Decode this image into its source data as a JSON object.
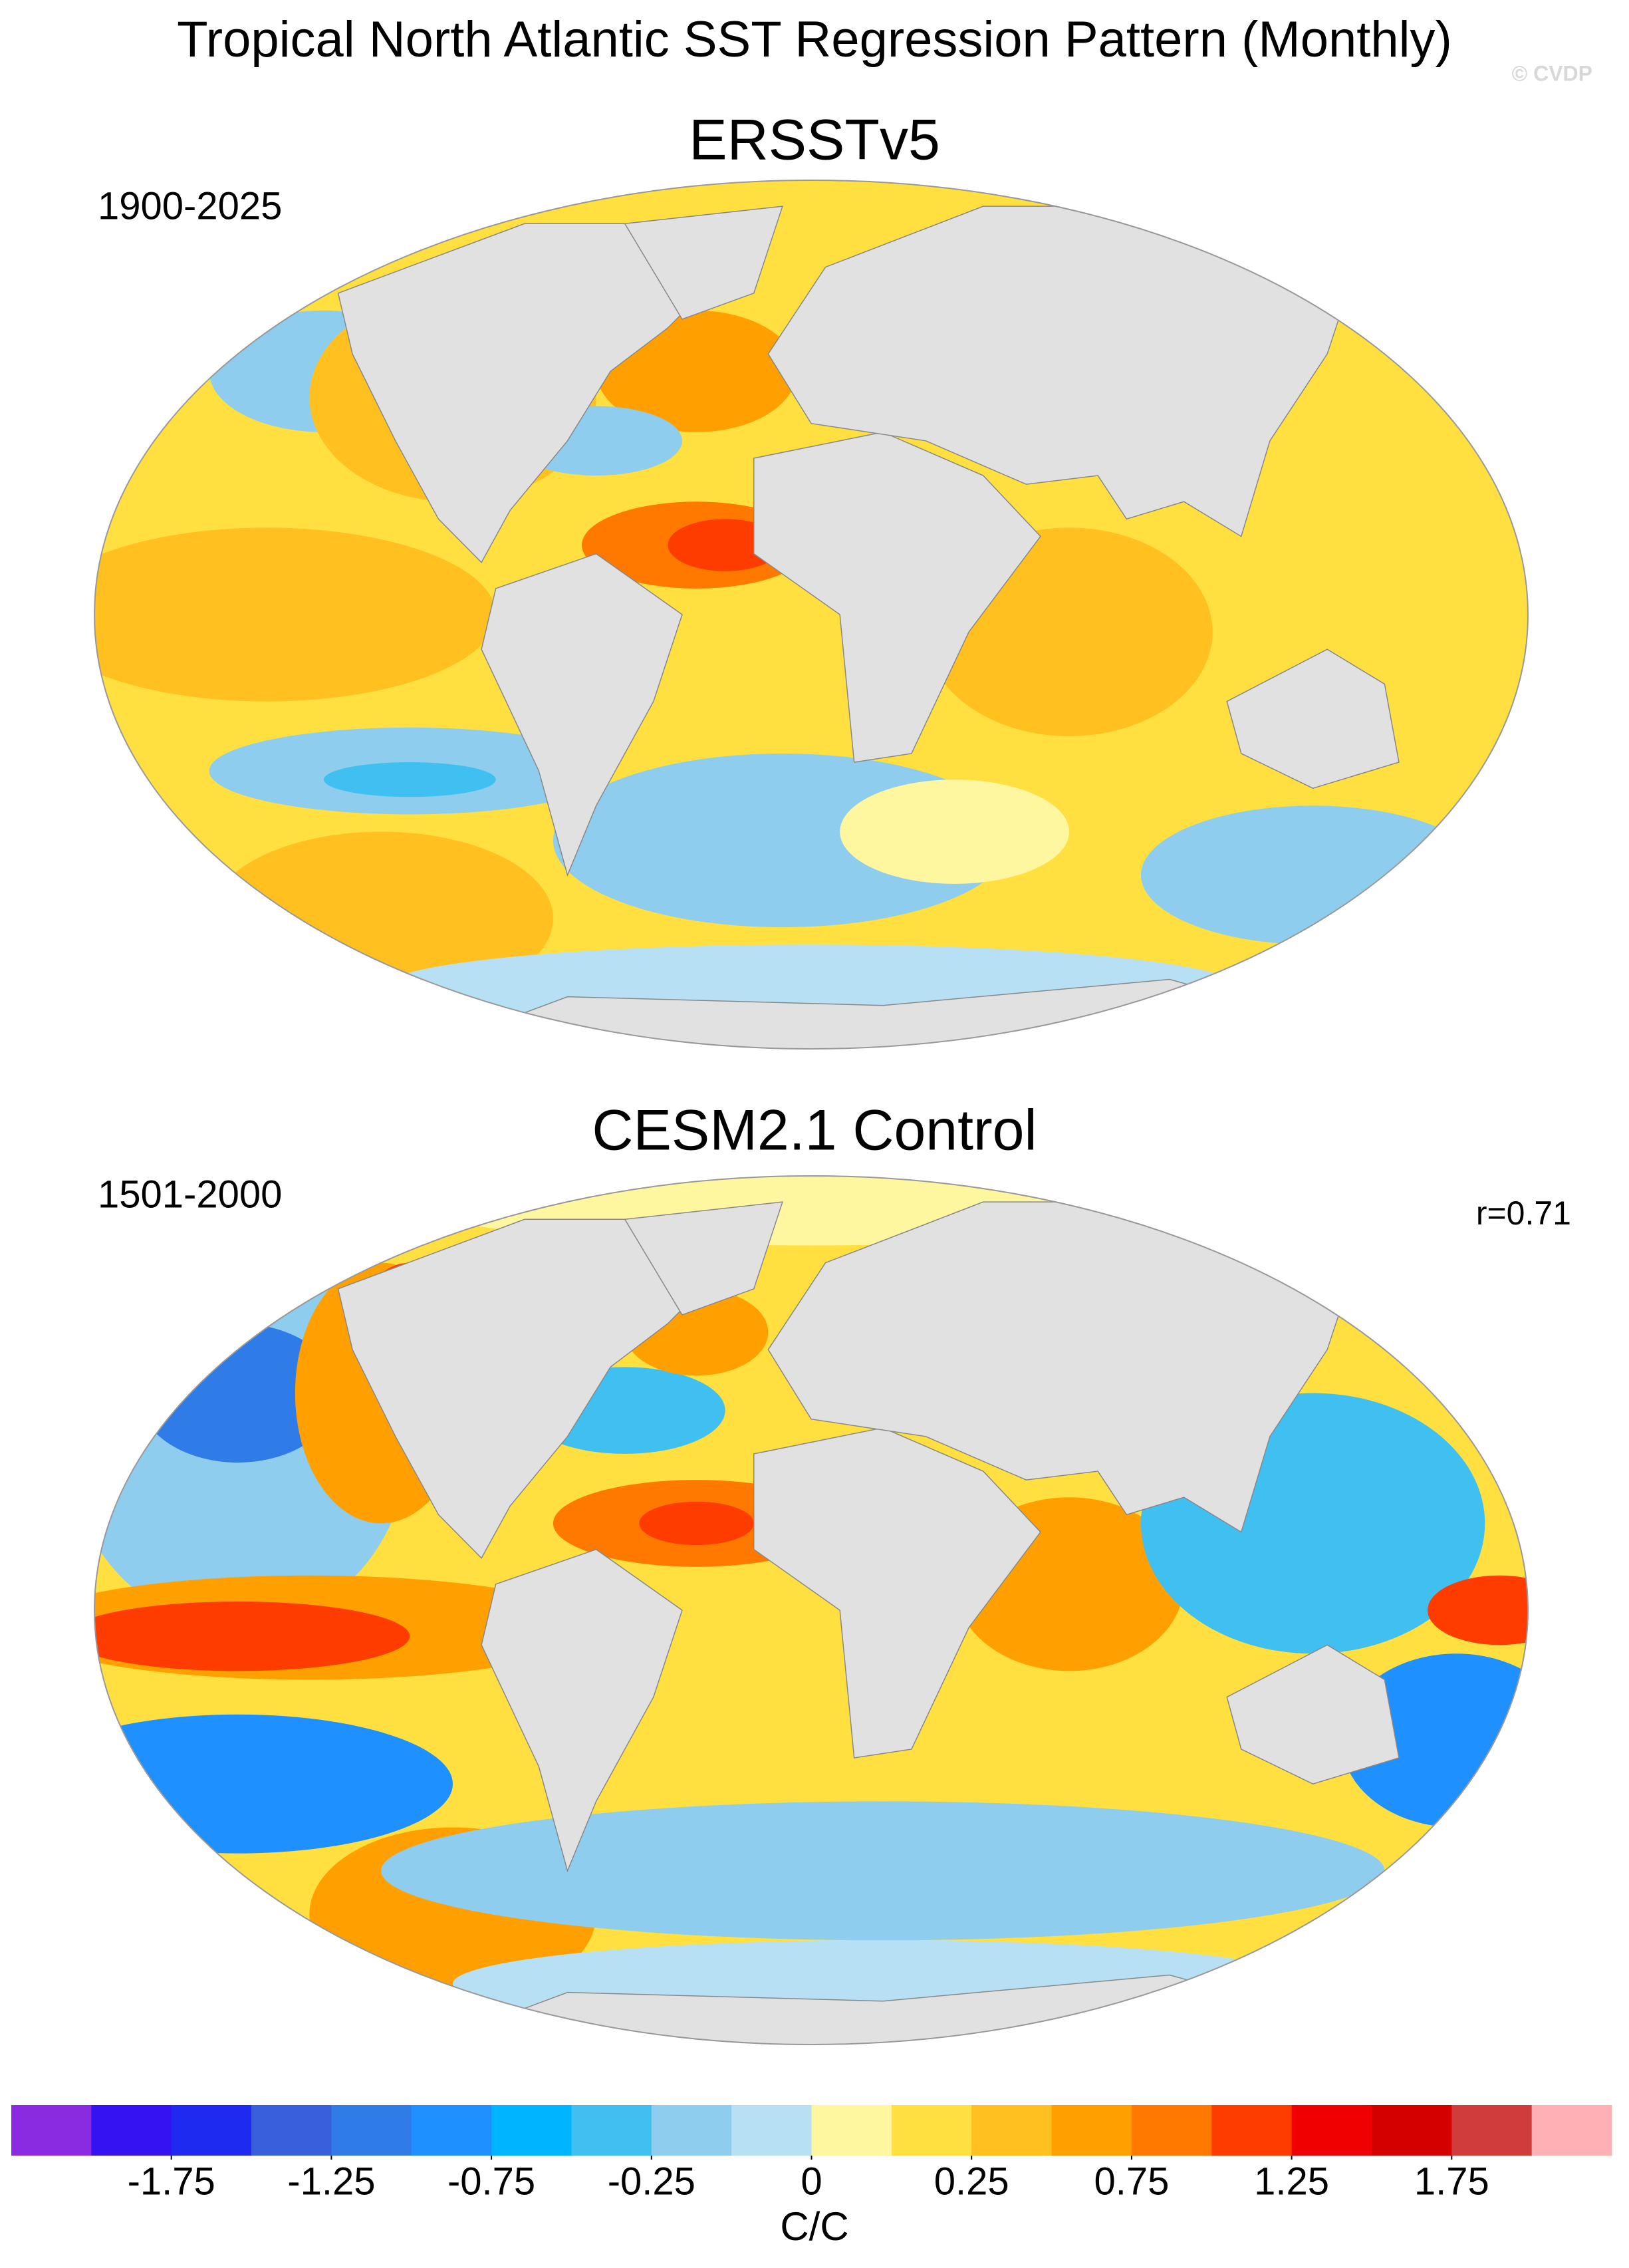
{
  "header": {
    "title": "Tropical North Atlantic SST Regression Pattern (Monthly)",
    "watermark": "© CVDP"
  },
  "panels": [
    {
      "title": "ERSSTv5",
      "period": "1900-2025"
    },
    {
      "title": "CESM2.1 Control",
      "period": "1501-2000",
      "annotation": "r=0.71"
    }
  ],
  "colorbar": {
    "colors": [
      "#8a2be2",
      "#3412f2",
      "#1e2af0",
      "#3a5fdc",
      "#2f7be8",
      "#1e90ff",
      "#00b4ff",
      "#40c0f0",
      "#8ecdee",
      "#b8e0f4",
      "#fff6a0",
      "#ffe040",
      "#ffc020",
      "#ffa000",
      "#ff7800",
      "#ff3c00",
      "#f00000",
      "#d40000",
      "#d03c3c",
      "#ffb0b4"
    ],
    "levels": [
      -2,
      -1.75,
      -1.5,
      -1.25,
      -1,
      -0.75,
      -0.5,
      -0.25,
      -0.1,
      0,
      0.1,
      0.25,
      0.5,
      0.75,
      1,
      1.25,
      1.5,
      1.75,
      2
    ],
    "ticks": [
      -1.75,
      -1.25,
      -0.75,
      -0.25,
      0,
      0.25,
      0.75,
      1.25,
      1.75
    ],
    "label": "C/C"
  }
}
